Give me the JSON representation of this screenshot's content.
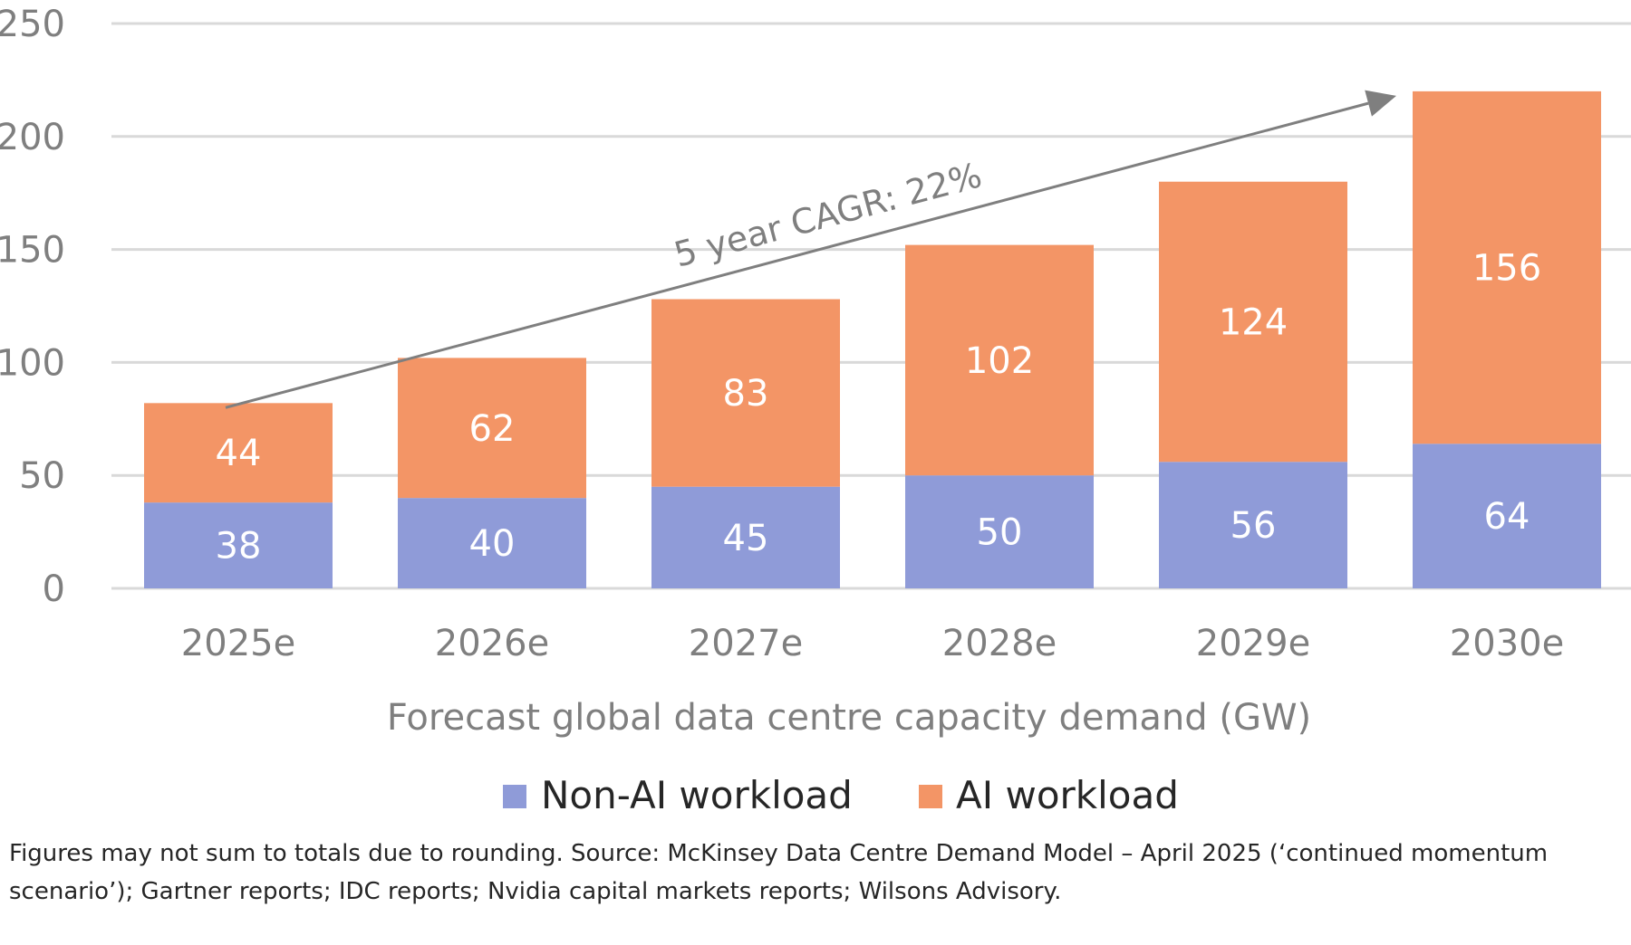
{
  "chart_data": {
    "type": "bar",
    "stacked": true,
    "categories": [
      "2025e",
      "2026e",
      "2027e",
      "2028e",
      "2029e",
      "2030e"
    ],
    "series": [
      {
        "name": "Non-AI workload",
        "values": [
          38,
          40,
          45,
          50,
          56,
          64
        ],
        "color": "#8f9bd8"
      },
      {
        "name": "AI workload",
        "values": [
          44,
          62,
          83,
          102,
          124,
          156
        ],
        "color": "#f39566"
      }
    ],
    "xlabel": "Forecast global data centre capacity demand (GW)",
    "ylabel": "",
    "ylim": [
      0,
      250
    ],
    "yticks": [
      0,
      50,
      100,
      150,
      200,
      250
    ],
    "grid": true,
    "legend_position": "bottom",
    "annotation": {
      "text": "5 year CAGR: 22%",
      "from_category": "2025e",
      "to_category": "2030e",
      "from_value": 80,
      "to_value": 218,
      "color": "#7f7f7f"
    }
  },
  "footnote": "Figures may not sum to totals due to rounding. Source: McKinsey Data Centre Demand Model – April 2025 (‘continued momentum scenario’); Gartner reports; IDC reports; Nvidia capital markets reports; Wilsons Advisory."
}
